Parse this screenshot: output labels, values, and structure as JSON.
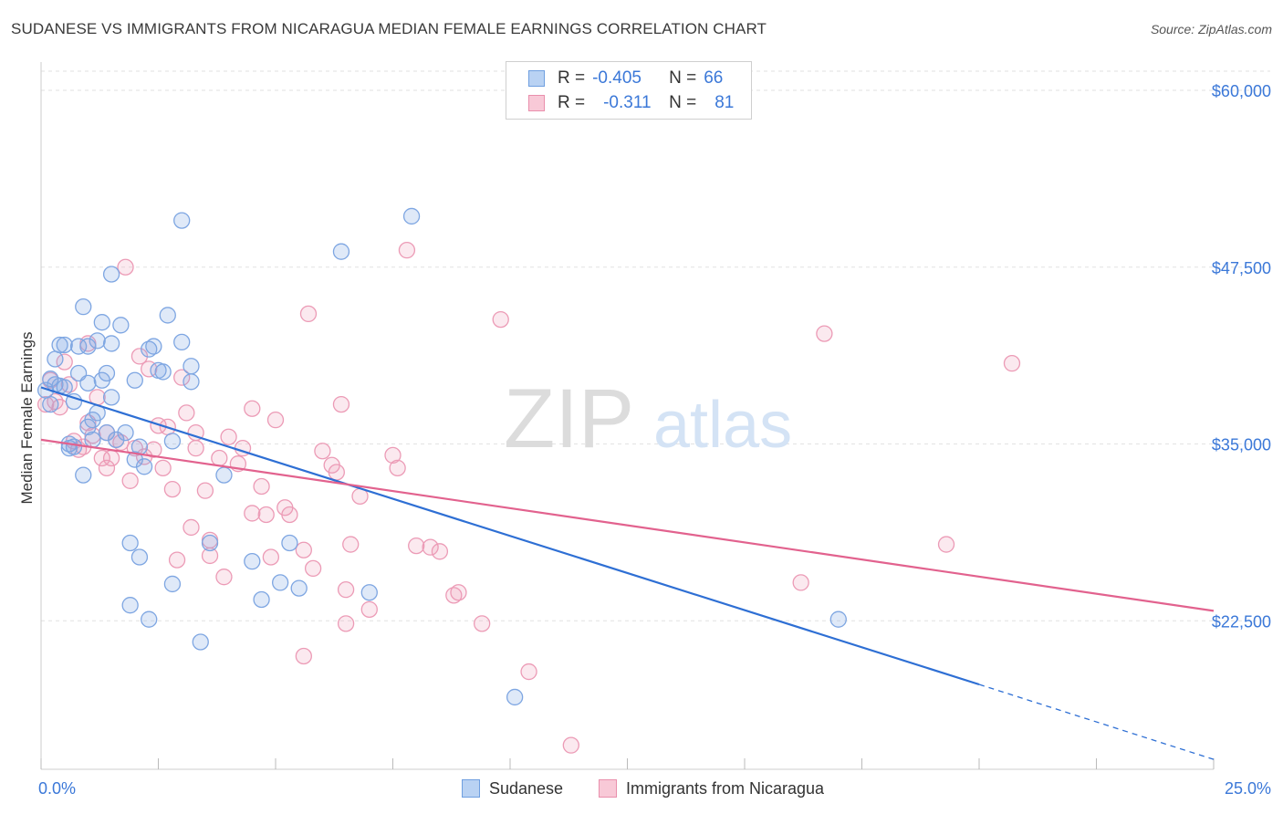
{
  "title": "SUDANESE VS IMMIGRANTS FROM NICARAGUA MEDIAN FEMALE EARNINGS CORRELATION CHART",
  "source": "Source: ZipAtlas.com",
  "watermark": {
    "zip": "ZIP",
    "atlas": "atlas"
  },
  "legend": {
    "r_label": "R =",
    "n_label": "N =",
    "series": [
      {
        "name": "Sudanese",
        "r": "-0.405",
        "n": "66",
        "fill": "#b9d2f3",
        "stroke": "#6f9fe0"
      },
      {
        "name": "Immigrants from Nicaragua",
        "r": "-0.311",
        "n": "81",
        "fill": "#f8c9d7",
        "stroke": "#e98fac"
      }
    ]
  },
  "colors": {
    "blue_point": "#7ea6e2",
    "pink_point": "#ec9bb6",
    "blue_line": "#2e6fd4",
    "pink_line": "#e2628e",
    "axis_label": "#3b78d8"
  },
  "chart_data": {
    "type": "scatter",
    "title": "SUDANESE VS IMMIGRANTS FROM NICARAGUA MEDIAN FEMALE EARNINGS CORRELATION CHART",
    "xlabel": "",
    "ylabel": "Median Female Earnings",
    "xlim": [
      0,
      25
    ],
    "ylim": [
      12000,
      62000
    ],
    "x_tick_labels": [
      "0.0%",
      "25.0%"
    ],
    "y_ticks": [
      22500,
      35000,
      47500,
      60000
    ],
    "y_tick_labels": [
      "$22,500",
      "$35,000",
      "$47,500",
      "$60,000"
    ],
    "grid": true,
    "series": [
      {
        "name": "Sudanese",
        "trend": {
          "x0": 0,
          "y0": 39000,
          "x1": 20,
          "y1": 18000,
          "dash_to_x": 25,
          "dash_to_y": 12700
        },
        "points": [
          [
            0.1,
            38800
          ],
          [
            0.2,
            39600
          ],
          [
            0.3,
            39200
          ],
          [
            0.4,
            39100
          ],
          [
            0.3,
            41000
          ],
          [
            0.4,
            42000
          ],
          [
            0.5,
            42000
          ],
          [
            0.6,
            34700
          ],
          [
            0.6,
            35000
          ],
          [
            0.7,
            38000
          ],
          [
            0.7,
            34800
          ],
          [
            0.8,
            40000
          ],
          [
            0.8,
            41900
          ],
          [
            0.9,
            44700
          ],
          [
            0.9,
            32800
          ],
          [
            1.0,
            36200
          ],
          [
            1.0,
            41900
          ],
          [
            1.1,
            35300
          ],
          [
            1.1,
            36700
          ],
          [
            1.2,
            37200
          ],
          [
            1.2,
            42300
          ],
          [
            1.3,
            43600
          ],
          [
            1.3,
            39500
          ],
          [
            1.4,
            40000
          ],
          [
            1.4,
            35800
          ],
          [
            1.5,
            42100
          ],
          [
            1.5,
            38300
          ],
          [
            1.5,
            47000
          ],
          [
            1.6,
            35300
          ],
          [
            1.7,
            43400
          ],
          [
            1.8,
            35800
          ],
          [
            1.9,
            28000
          ],
          [
            1.9,
            23600
          ],
          [
            2.0,
            33900
          ],
          [
            2.0,
            39500
          ],
          [
            2.1,
            27000
          ],
          [
            2.1,
            34800
          ],
          [
            2.2,
            33400
          ],
          [
            2.3,
            22600
          ],
          [
            2.3,
            41700
          ],
          [
            2.4,
            41900
          ],
          [
            2.5,
            40200
          ],
          [
            2.6,
            40100
          ],
          [
            2.7,
            44100
          ],
          [
            2.8,
            25100
          ],
          [
            2.8,
            35200
          ],
          [
            3.0,
            42200
          ],
          [
            3.0,
            50800
          ],
          [
            3.2,
            40500
          ],
          [
            3.2,
            39400
          ],
          [
            3.4,
            21000
          ],
          [
            3.6,
            28000
          ],
          [
            3.9,
            32800
          ],
          [
            4.5,
            26700
          ],
          [
            4.7,
            24000
          ],
          [
            5.1,
            25200
          ],
          [
            5.3,
            28000
          ],
          [
            5.5,
            24800
          ],
          [
            6.4,
            48600
          ],
          [
            7.0,
            24500
          ],
          [
            7.9,
            51100
          ],
          [
            10.1,
            17100
          ],
          [
            17.0,
            22600
          ],
          [
            0.2,
            37800
          ],
          [
            0.5,
            39000
          ],
          [
            1.0,
            39300
          ]
        ]
      },
      {
        "name": "Immigrants from Nicaragua",
        "trend": {
          "x0": 0,
          "y0": 35300,
          "x1": 25,
          "y1": 23200
        },
        "points": [
          [
            0.1,
            37800
          ],
          [
            0.2,
            39500
          ],
          [
            0.3,
            38000
          ],
          [
            0.4,
            37600
          ],
          [
            0.5,
            40800
          ],
          [
            0.6,
            39200
          ],
          [
            0.7,
            35200
          ],
          [
            0.8,
            34600
          ],
          [
            0.9,
            34800
          ],
          [
            1.0,
            36500
          ],
          [
            1.0,
            42100
          ],
          [
            1.1,
            35600
          ],
          [
            1.2,
            38300
          ],
          [
            1.3,
            34000
          ],
          [
            1.4,
            35800
          ],
          [
            1.4,
            33300
          ],
          [
            1.5,
            34000
          ],
          [
            1.6,
            35300
          ],
          [
            1.7,
            35100
          ],
          [
            1.8,
            47500
          ],
          [
            1.9,
            32400
          ],
          [
            2.0,
            34700
          ],
          [
            2.1,
            41200
          ],
          [
            2.2,
            34100
          ],
          [
            2.3,
            40300
          ],
          [
            2.4,
            34600
          ],
          [
            2.5,
            36300
          ],
          [
            2.6,
            33300
          ],
          [
            2.7,
            36200
          ],
          [
            2.8,
            31800
          ],
          [
            2.9,
            26800
          ],
          [
            3.0,
            39700
          ],
          [
            3.1,
            37200
          ],
          [
            3.2,
            29100
          ],
          [
            3.3,
            34700
          ],
          [
            3.3,
            35800
          ],
          [
            3.5,
            31700
          ],
          [
            3.6,
            28200
          ],
          [
            3.6,
            27100
          ],
          [
            3.8,
            34000
          ],
          [
            3.9,
            25600
          ],
          [
            4.0,
            35500
          ],
          [
            4.2,
            33600
          ],
          [
            4.3,
            34700
          ],
          [
            4.5,
            30100
          ],
          [
            4.5,
            37500
          ],
          [
            4.7,
            32000
          ],
          [
            4.8,
            30000
          ],
          [
            4.9,
            27000
          ],
          [
            5.0,
            36700
          ],
          [
            5.2,
            30500
          ],
          [
            5.3,
            30000
          ],
          [
            5.6,
            27500
          ],
          [
            5.6,
            20000
          ],
          [
            5.7,
            44200
          ],
          [
            5.8,
            26200
          ],
          [
            6.0,
            34500
          ],
          [
            6.2,
            33500
          ],
          [
            6.3,
            33000
          ],
          [
            6.4,
            37800
          ],
          [
            6.5,
            22300
          ],
          [
            6.5,
            24700
          ],
          [
            6.6,
            27900
          ],
          [
            6.8,
            31300
          ],
          [
            7.0,
            23300
          ],
          [
            7.5,
            34200
          ],
          [
            7.6,
            33300
          ],
          [
            7.8,
            48700
          ],
          [
            8.0,
            27800
          ],
          [
            8.3,
            27700
          ],
          [
            8.5,
            27400
          ],
          [
            8.8,
            24300
          ],
          [
            8.9,
            24500
          ],
          [
            9.4,
            22300
          ],
          [
            9.8,
            43800
          ],
          [
            10.4,
            18900
          ],
          [
            11.3,
            13700
          ],
          [
            16.2,
            25200
          ],
          [
            16.7,
            42800
          ],
          [
            19.3,
            27900
          ],
          [
            20.7,
            40700
          ]
        ]
      }
    ]
  }
}
